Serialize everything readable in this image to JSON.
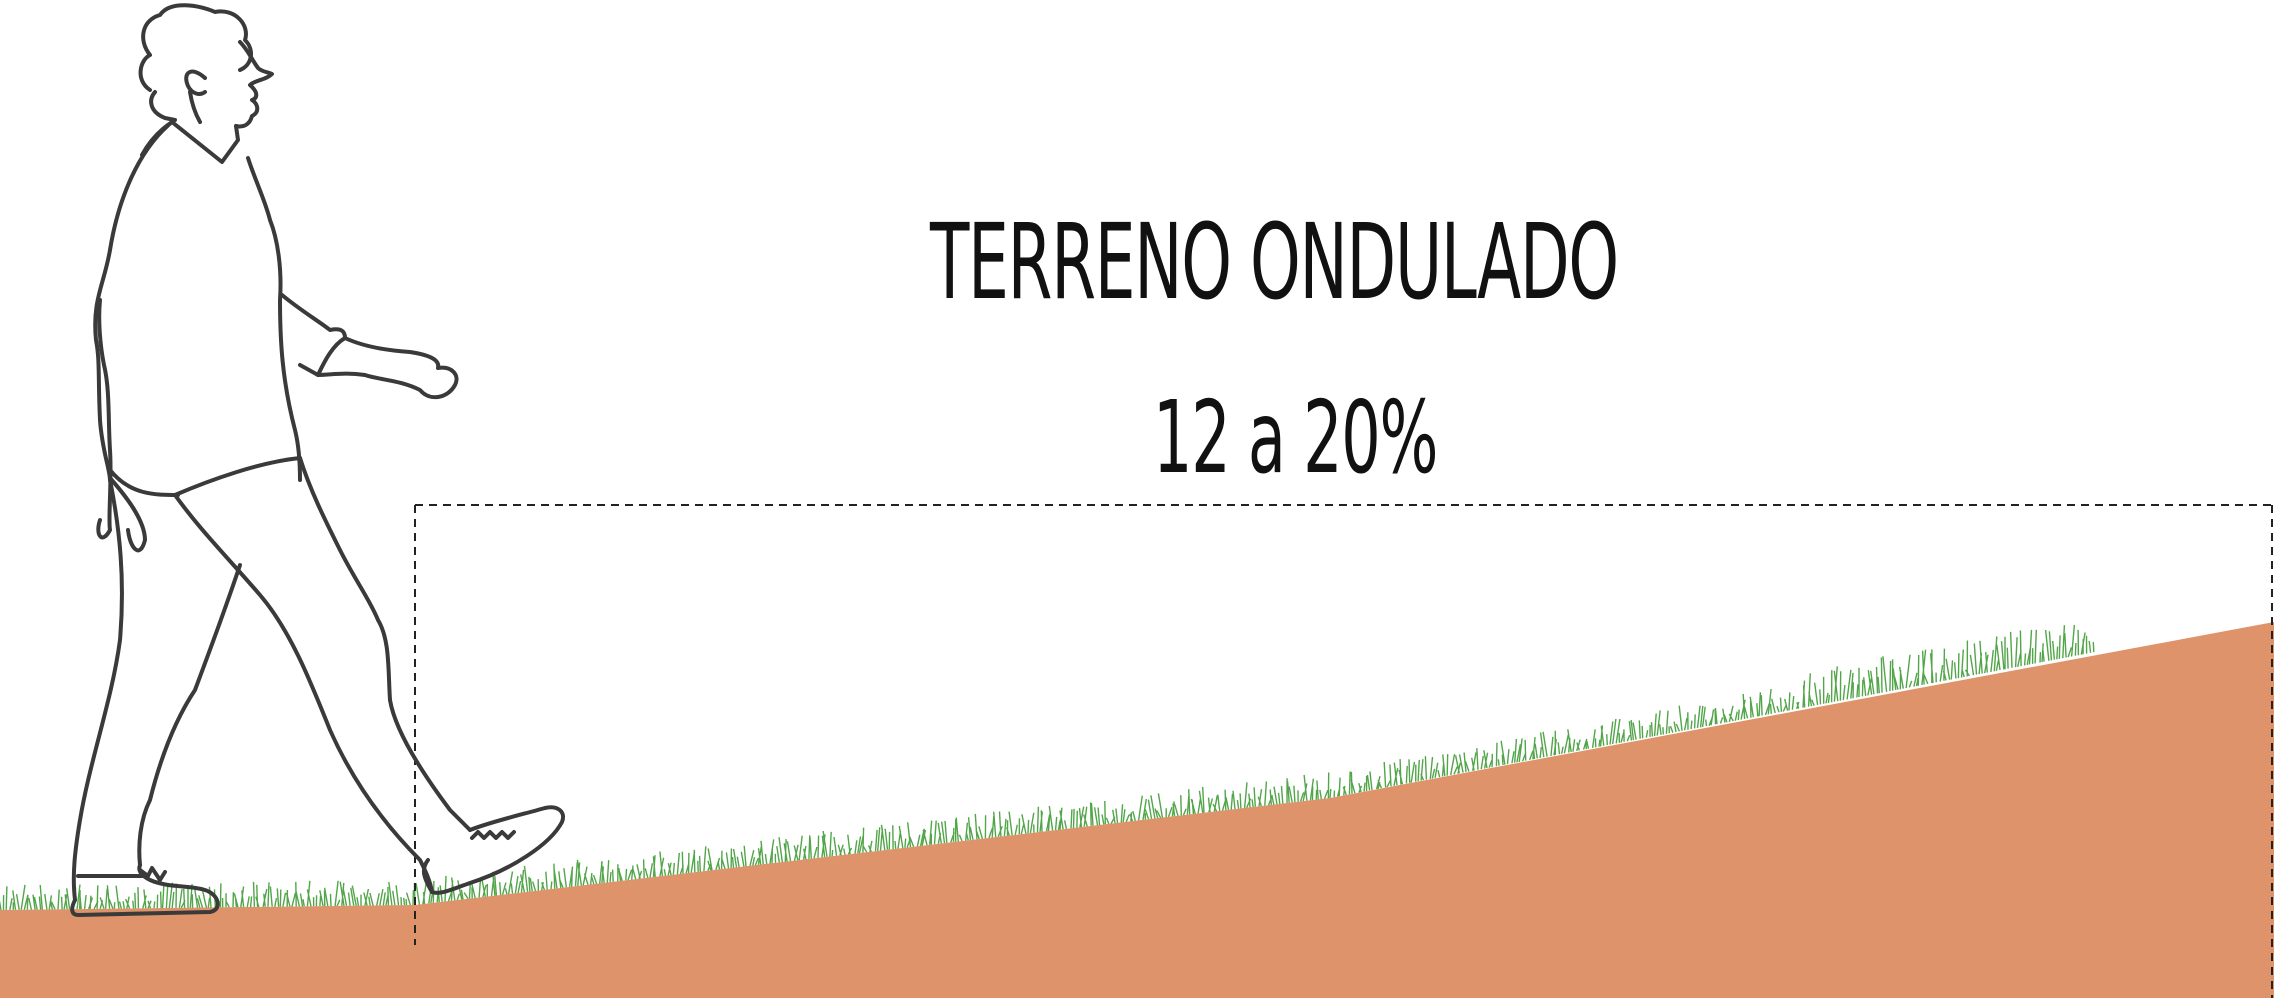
{
  "diagram": {
    "title": "TERRENO ONDULADO",
    "slope_label": "12 a 20%",
    "colors": {
      "soil": "#DF936A",
      "grass": "#3F9B35",
      "outline": "#3A3A3A",
      "guide": "#222222",
      "text": "#111111"
    },
    "icons": [
      "walking-person-illustration",
      "grass-texture",
      "slope-guide-box"
    ]
  }
}
